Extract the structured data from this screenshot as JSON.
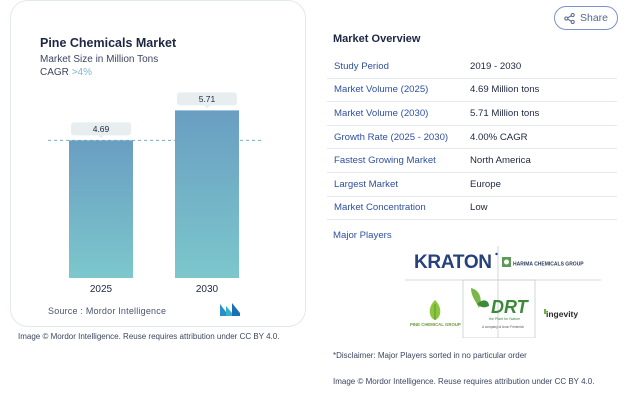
{
  "chart": {
    "title": "Pine Chemicals Market",
    "subtitle": "Market Size in Million Tons",
    "cagr_label": "CAGR",
    "cagr_value": ">4%",
    "source": "Source : Mordor Intelligence",
    "attribution": "Image © Mordor Intelligence. Reuse requires attribution under CC BY 4.0."
  },
  "chart_data": {
    "type": "bar",
    "categories": [
      "2025",
      "2030"
    ],
    "values": [
      4.69,
      5.71
    ],
    "title": "Pine Chemicals Market",
    "subtitle": "Market Size in Million Tons",
    "xlabel": "",
    "ylabel": "",
    "ylim": [
      0,
      6.2
    ],
    "grid": false,
    "colors": {
      "bar_top": "#6a9ec2",
      "bar_bottom": "#7cc7cc",
      "label_bg": "#e8eef0",
      "dash": "#6fb3c6"
    }
  },
  "share": {
    "label": "Share",
    "icon": "share-icon"
  },
  "overview": {
    "title": "Market Overview",
    "rows": [
      {
        "label": "Study Period",
        "value": "2019 - 2030"
      },
      {
        "label": "Market Volume (2025)",
        "value": "4.69 Million tons"
      },
      {
        "label": "Market Volume (2030)",
        "value": "5.71 Million tons"
      },
      {
        "label": "Growth Rate (2025 - 2030)",
        "value": "4.00% CAGR"
      },
      {
        "label": "Fastest Growing Market",
        "value": "North America"
      },
      {
        "label": "Largest Market",
        "value": "Europe"
      },
      {
        "label": "Market Concentration",
        "value": "Low"
      }
    ],
    "players_label": "Major Players",
    "players": {
      "kraton": "KRATON",
      "harima": "HARIMA CHEMICALS GROUP",
      "pine": "PINE CHEMICAL GROUP",
      "drt": "DRT",
      "drt_tagline": "the Plant for Nature",
      "drt_sub": "A company of Axon Firmenich",
      "ingevity": "ingevity"
    },
    "disclaimer": "*Disclaimer: Major Players sorted in no particular order",
    "attribution": "Image © Mordor Intelligence. Reuse requires attribution under CC BY 4.0."
  }
}
